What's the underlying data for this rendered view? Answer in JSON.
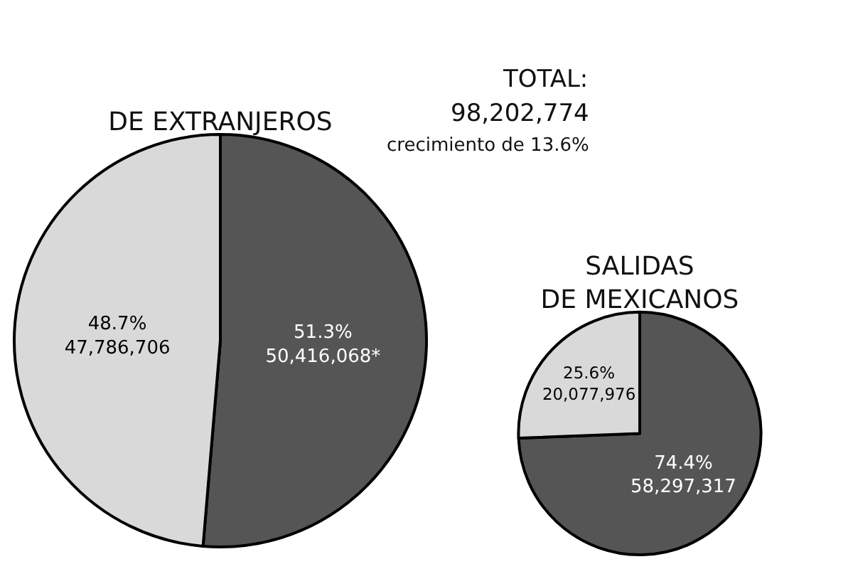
{
  "chart_data": [
    {
      "type": "pie",
      "title": "DE EXTRANJEROS",
      "categories": [
        null,
        null
      ],
      "values": [
        50416068,
        47786706
      ],
      "colors": [
        "#555555",
        "#d9d9d9"
      ],
      "value_labels": [
        "51.3%\n50,416,068*",
        "48.7%\n47,786,706"
      ],
      "annotations": [
        "TOTAL:",
        "98,202,774",
        "crecimiento de 13.6%"
      ]
    },
    {
      "type": "pie",
      "title": "SALIDAS\nDE MEXICANOS",
      "categories": [
        null,
        null
      ],
      "values": [
        58297317,
        20077976
      ],
      "colors": [
        "#555555",
        "#d9d9d9"
      ],
      "value_labels": [
        "74.4%\n58,297,317",
        "25.6%\n20,077,976"
      ]
    }
  ]
}
